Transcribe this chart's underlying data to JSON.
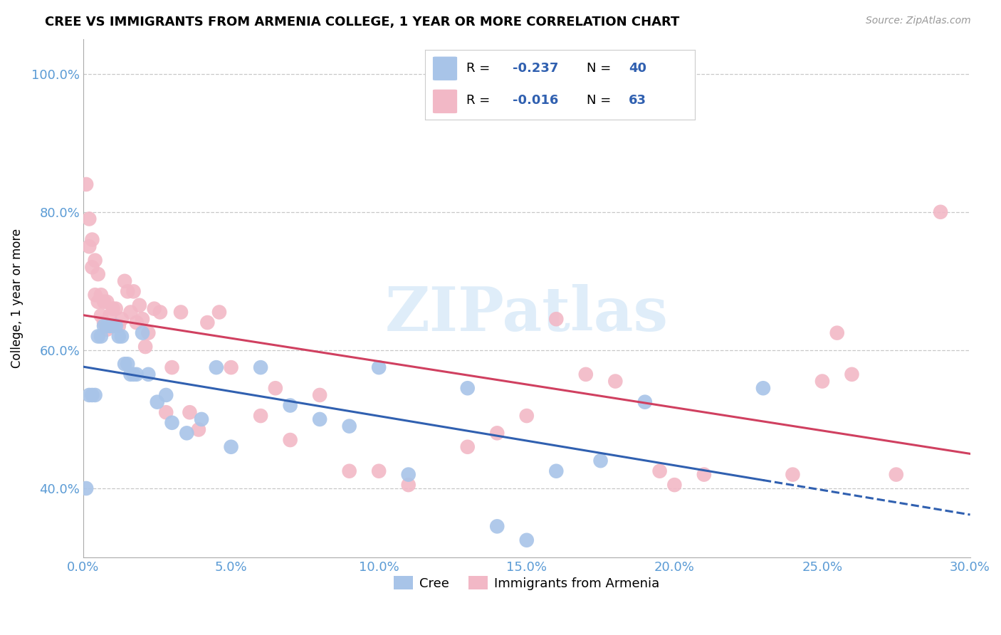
{
  "title": "CREE VS IMMIGRANTS FROM ARMENIA COLLEGE, 1 YEAR OR MORE CORRELATION CHART",
  "source": "Source: ZipAtlas.com",
  "xmin": 0.0,
  "xmax": 0.3,
  "ymin": 0.3,
  "ymax": 1.05,
  "cree_R": -0.237,
  "cree_N": 40,
  "armenia_R": -0.016,
  "armenia_N": 63,
  "cree_color": "#a8c4e8",
  "armenia_color": "#f2b8c6",
  "cree_line_color": "#3060b0",
  "armenia_line_color": "#d04060",
  "watermark": "ZIPatlas",
  "ytick_vals": [
    0.4,
    0.6,
    0.8,
    1.0
  ],
  "ytick_labels": [
    "40.0%",
    "60.0%",
    "80.0%",
    "100.0%"
  ],
  "xtick_vals": [
    0.0,
    0.05,
    0.1,
    0.15,
    0.2,
    0.25,
    0.3
  ],
  "xtick_labels": [
    "0.0%",
    "5.0%",
    "10.0%",
    "15.0%",
    "20.0%",
    "25.0%",
    "30.0%"
  ],
  "cree_x": [
    0.001,
    0.002,
    0.003,
    0.004,
    0.005,
    0.006,
    0.007,
    0.008,
    0.009,
    0.01,
    0.011,
    0.012,
    0.013,
    0.014,
    0.015,
    0.016,
    0.017,
    0.018,
    0.02,
    0.022,
    0.025,
    0.028,
    0.03,
    0.035,
    0.04,
    0.045,
    0.05,
    0.06,
    0.07,
    0.08,
    0.09,
    0.1,
    0.11,
    0.13,
    0.14,
    0.15,
    0.16,
    0.175,
    0.19,
    0.23
  ],
  "cree_y": [
    0.4,
    0.535,
    0.535,
    0.535,
    0.62,
    0.62,
    0.635,
    0.635,
    0.635,
    0.635,
    0.635,
    0.62,
    0.62,
    0.58,
    0.58,
    0.565,
    0.565,
    0.565,
    0.625,
    0.565,
    0.525,
    0.535,
    0.495,
    0.48,
    0.5,
    0.575,
    0.46,
    0.575,
    0.52,
    0.5,
    0.49,
    0.575,
    0.42,
    0.545,
    0.345,
    0.325,
    0.425,
    0.44,
    0.525,
    0.545
  ],
  "armenia_x": [
    0.001,
    0.002,
    0.002,
    0.003,
    0.003,
    0.004,
    0.004,
    0.005,
    0.005,
    0.006,
    0.006,
    0.007,
    0.007,
    0.008,
    0.008,
    0.009,
    0.009,
    0.01,
    0.01,
    0.011,
    0.012,
    0.013,
    0.014,
    0.015,
    0.016,
    0.017,
    0.018,
    0.019,
    0.02,
    0.021,
    0.022,
    0.024,
    0.026,
    0.028,
    0.03,
    0.033,
    0.036,
    0.039,
    0.042,
    0.046,
    0.05,
    0.06,
    0.065,
    0.07,
    0.08,
    0.09,
    0.1,
    0.11,
    0.13,
    0.14,
    0.15,
    0.16,
    0.17,
    0.18,
    0.195,
    0.2,
    0.21,
    0.24,
    0.25,
    0.255,
    0.26,
    0.275,
    0.29
  ],
  "armenia_y": [
    0.84,
    0.79,
    0.75,
    0.76,
    0.72,
    0.73,
    0.68,
    0.71,
    0.67,
    0.68,
    0.65,
    0.67,
    0.64,
    0.67,
    0.63,
    0.65,
    0.635,
    0.66,
    0.635,
    0.66,
    0.635,
    0.645,
    0.7,
    0.685,
    0.655,
    0.685,
    0.64,
    0.665,
    0.645,
    0.605,
    0.625,
    0.66,
    0.655,
    0.51,
    0.575,
    0.655,
    0.51,
    0.485,
    0.64,
    0.655,
    0.575,
    0.505,
    0.545,
    0.47,
    0.535,
    0.425,
    0.425,
    0.405,
    0.46,
    0.48,
    0.505,
    0.645,
    0.565,
    0.555,
    0.425,
    0.405,
    0.42,
    0.42,
    0.555,
    0.625,
    0.565,
    0.42,
    0.8
  ]
}
